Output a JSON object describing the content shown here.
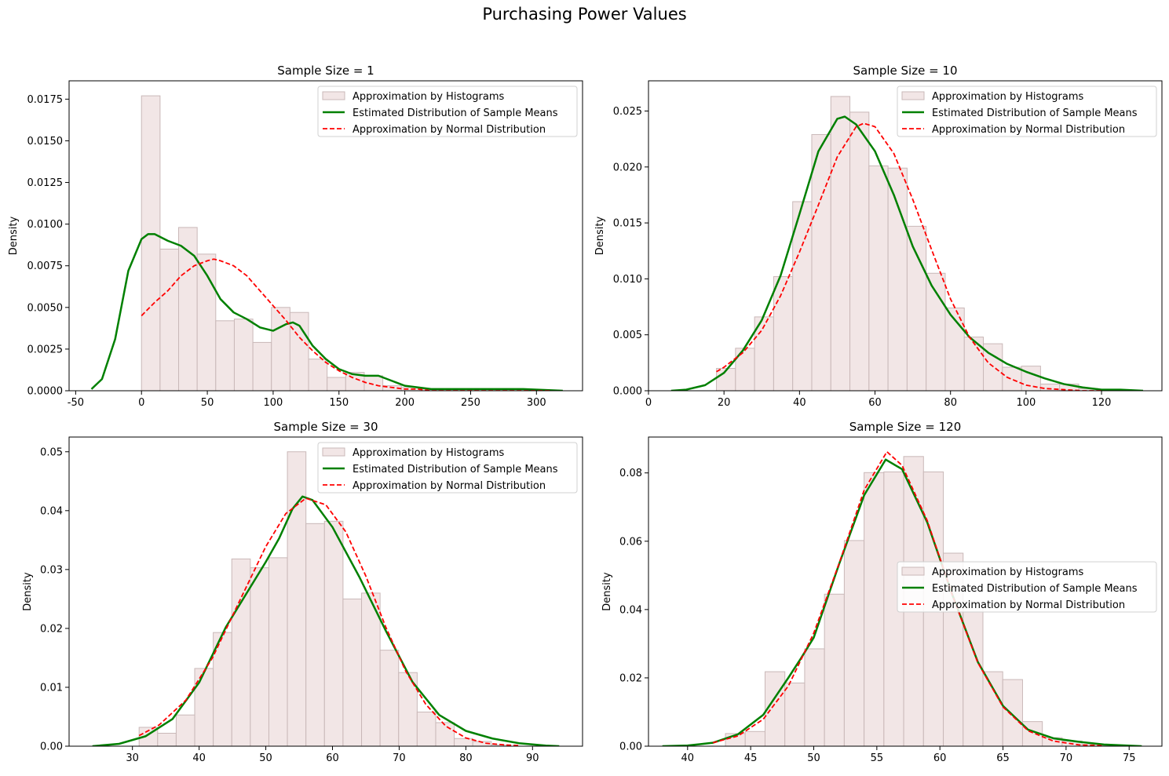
{
  "figure": {
    "suptitle": "Purchasing Power Values"
  },
  "legend_labels": {
    "hist": "Approximation by Histograms",
    "kde": "Estimated Distribution of Sample Means",
    "normal": "Approximation by Normal Distribution"
  },
  "colors": {
    "hist_fill": "#f2e6e6",
    "hist_edge": "#c9b8b8",
    "kde": "#008000",
    "normal": "#ff0000"
  },
  "chart_data": [
    {
      "type": "bar",
      "title": "Sample Size = 1",
      "xlabel": "",
      "ylabel": "Density",
      "xlim": [
        -55,
        335
      ],
      "ylim": [
        0,
        0.0186
      ],
      "xticks": [
        -50,
        0,
        50,
        100,
        150,
        200,
        250,
        300
      ],
      "yticks": [
        0.0,
        0.0025,
        0.005,
        0.0075,
        0.01,
        0.0125,
        0.015,
        0.0175
      ],
      "ytick_labels": [
        "0.0000",
        "0.0025",
        "0.0050",
        "0.0075",
        "0.0100",
        "0.0125",
        "0.0150",
        "0.0175"
      ],
      "legend_position": "top-right",
      "histogram": {
        "bin_start": 0,
        "bin_width": 14.1,
        "densities": [
          0.0177,
          0.0085,
          0.0098,
          0.0082,
          0.0042,
          0.0043,
          0.0029,
          0.005,
          0.0047,
          0.0019,
          0.0008,
          0.0011,
          0.0009,
          0.0003,
          0.0002,
          0.0001,
          0.0001,
          0.0001,
          0.0,
          0.0001,
          0.0,
          0.0
        ]
      },
      "kde": {
        "x": [
          -38,
          -30,
          -20,
          -10,
          0,
          5,
          10,
          20,
          30,
          40,
          50,
          60,
          70,
          80,
          90,
          100,
          110,
          115,
          120,
          130,
          140,
          150,
          160,
          170,
          180,
          190,
          200,
          220,
          250,
          270,
          290,
          320
        ],
        "y": [
          0.0001,
          0.0007,
          0.0031,
          0.0072,
          0.0091,
          0.0094,
          0.0094,
          0.009,
          0.0087,
          0.0081,
          0.0069,
          0.0055,
          0.0047,
          0.0043,
          0.0038,
          0.0036,
          0.004,
          0.0041,
          0.0039,
          0.0027,
          0.0019,
          0.0013,
          0.001,
          0.0009,
          0.0009,
          0.0006,
          0.0003,
          0.0001,
          0.0001,
          0.0001,
          0.0001,
          0.0
        ]
      },
      "normal": {
        "x": [
          0,
          10,
          20,
          30,
          40,
          50,
          55,
          60,
          70,
          80,
          90,
          100,
          110,
          120,
          130,
          140,
          150,
          160,
          170,
          180,
          190,
          200,
          210,
          220,
          230,
          240,
          250,
          260,
          270,
          280,
          290,
          300,
          310
        ],
        "y": [
          0.0045,
          0.0053,
          0.006,
          0.0069,
          0.0075,
          0.0078,
          0.0079,
          0.0078,
          0.0075,
          0.0069,
          0.006,
          0.0051,
          0.0042,
          0.0032,
          0.0024,
          0.0017,
          0.0012,
          0.0008,
          0.0005,
          0.0003,
          0.0002,
          0.0001,
          0.0001,
          0.0,
          0.0,
          0.0,
          0.0,
          0.0,
          0.0,
          0.0,
          0.0,
          0.0,
          0.0
        ]
      }
    },
    {
      "type": "bar",
      "title": "Sample Size = 10",
      "xlabel": "",
      "ylabel": "Density",
      "xlim": [
        0,
        136
      ],
      "ylim": [
        0,
        0.0277
      ],
      "xticks": [
        0,
        20,
        40,
        60,
        80,
        100,
        120
      ],
      "yticks": [
        0.0,
        0.005,
        0.01,
        0.015,
        0.02,
        0.025
      ],
      "ytick_labels": [
        "0.000",
        "0.005",
        "0.010",
        "0.015",
        "0.020",
        "0.025"
      ],
      "legend_position": "top-right",
      "histogram": {
        "bin_start": 18,
        "bin_width": 5.05,
        "densities": [
          0.002,
          0.0038,
          0.0066,
          0.0102,
          0.0169,
          0.0229,
          0.0263,
          0.0249,
          0.0201,
          0.0199,
          0.0147,
          0.0105,
          0.0074,
          0.0048,
          0.0042,
          0.0021,
          0.0022,
          0.0006,
          0.0006,
          0.0002
        ]
      },
      "kde": {
        "x": [
          6,
          10,
          15,
          20,
          25,
          30,
          35,
          40,
          45,
          50,
          52,
          55,
          60,
          65,
          70,
          75,
          80,
          85,
          90,
          95,
          100,
          105,
          110,
          115,
          120,
          125,
          131
        ],
        "y": [
          0.0,
          0.0001,
          0.0005,
          0.0016,
          0.0036,
          0.0063,
          0.0103,
          0.0158,
          0.0214,
          0.0243,
          0.0245,
          0.0238,
          0.0214,
          0.0175,
          0.0129,
          0.0094,
          0.0068,
          0.0048,
          0.0034,
          0.0024,
          0.0017,
          0.0011,
          0.0006,
          0.0003,
          0.0001,
          0.0001,
          0.0
        ]
      },
      "normal": {
        "x": [
          18,
          20,
          25,
          30,
          35,
          40,
          45,
          50,
          55,
          57,
          60,
          65,
          70,
          75,
          80,
          85,
          90,
          95,
          100,
          105,
          110,
          115,
          120
        ],
        "y": [
          0.0017,
          0.0021,
          0.0034,
          0.0054,
          0.0085,
          0.0124,
          0.0166,
          0.0209,
          0.0236,
          0.0239,
          0.0236,
          0.0212,
          0.0171,
          0.0126,
          0.0082,
          0.0048,
          0.0025,
          0.0012,
          0.0005,
          0.0002,
          0.0001,
          0.0,
          0.0
        ]
      }
    },
    {
      "type": "bar",
      "title": "Sample Size = 30",
      "xlabel": "",
      "ylabel": "Density",
      "xlim": [
        20.5,
        97.5
      ],
      "ylim": [
        0,
        0.0525
      ],
      "xticks": [
        30,
        40,
        50,
        60,
        70,
        80,
        90
      ],
      "yticks": [
        0.0,
        0.01,
        0.02,
        0.03,
        0.04,
        0.05
      ],
      "ytick_labels": [
        "0.00",
        "0.01",
        "0.02",
        "0.03",
        "0.04",
        "0.05"
      ],
      "legend_position": "top-right",
      "histogram": {
        "bin_start": 31,
        "bin_width": 2.78,
        "densities": [
          0.0032,
          0.0022,
          0.0053,
          0.0132,
          0.0193,
          0.0318,
          0.0303,
          0.032,
          0.05,
          0.0378,
          0.0382,
          0.025,
          0.026,
          0.0163,
          0.0125,
          0.0058,
          0.004,
          0.0013,
          0.0008,
          0.0002
        ]
      },
      "kde": {
        "x": [
          24,
          28,
          32,
          36,
          40,
          44,
          48,
          50,
          52,
          54,
          55.5,
          57,
          60,
          64,
          68,
          72,
          76,
          80,
          84,
          88,
          92,
          94
        ],
        "y": [
          0.0,
          0.0004,
          0.0017,
          0.0046,
          0.0108,
          0.0202,
          0.0276,
          0.0313,
          0.0353,
          0.0403,
          0.0424,
          0.0418,
          0.0372,
          0.0288,
          0.0196,
          0.0109,
          0.0053,
          0.0026,
          0.0013,
          0.0005,
          0.0001,
          0.0
        ]
      },
      "normal": {
        "x": [
          31,
          34,
          38,
          42,
          46,
          50,
          53,
          56,
          59,
          62,
          65,
          68,
          71,
          74,
          77,
          80,
          83,
          86,
          88
        ],
        "y": [
          0.0018,
          0.0036,
          0.0078,
          0.015,
          0.0245,
          0.0339,
          0.0395,
          0.0421,
          0.041,
          0.0364,
          0.0289,
          0.0202,
          0.0127,
          0.0071,
          0.0034,
          0.0014,
          0.0005,
          0.0002,
          0.0001
        ]
      }
    },
    {
      "type": "bar",
      "title": "Sample Size = 120",
      "xlabel": "",
      "ylabel": "Density",
      "xlim": [
        36.9,
        77.6
      ],
      "ylim": [
        0,
        0.0905
      ],
      "xticks": [
        40,
        45,
        50,
        55,
        60,
        65,
        70,
        75
      ],
      "yticks": [
        0.0,
        0.02,
        0.04,
        0.06,
        0.08
      ],
      "ytick_labels": [
        "0.00",
        "0.02",
        "0.04",
        "0.06",
        "0.08"
      ],
      "legend_position": "center-right",
      "histogram": {
        "bin_start": 43,
        "bin_width": 1.57,
        "densities": [
          0.0037,
          0.0043,
          0.0218,
          0.0185,
          0.0285,
          0.0445,
          0.0602,
          0.0801,
          0.0803,
          0.0848,
          0.0803,
          0.0565,
          0.0425,
          0.0218,
          0.0195,
          0.0072,
          0.0025,
          0.0015,
          0.0005,
          0.0002
        ]
      },
      "kde": {
        "x": [
          38,
          40,
          42,
          44,
          46,
          48,
          49,
          50,
          52,
          54,
          55.7,
          57,
          59,
          61,
          63,
          65,
          67,
          69,
          71,
          73,
          76
        ],
        "y": [
          0.0,
          0.0002,
          0.001,
          0.0035,
          0.0092,
          0.0201,
          0.0258,
          0.0318,
          0.0532,
          0.0735,
          0.0839,
          0.0811,
          0.0655,
          0.0442,
          0.0247,
          0.0118,
          0.0048,
          0.0023,
          0.0013,
          0.0005,
          0.0
        ]
      },
      "normal": {
        "x": [
          42,
          44,
          46,
          48,
          50,
          52,
          54,
          55.8,
          57,
          59,
          61,
          63,
          65,
          67,
          69,
          71,
          73
        ],
        "y": [
          0.001,
          0.003,
          0.0079,
          0.0177,
          0.0331,
          0.0534,
          0.075,
          0.0862,
          0.0822,
          0.066,
          0.0441,
          0.0245,
          0.0115,
          0.0045,
          0.0015,
          0.0004,
          0.0001
        ]
      }
    }
  ]
}
